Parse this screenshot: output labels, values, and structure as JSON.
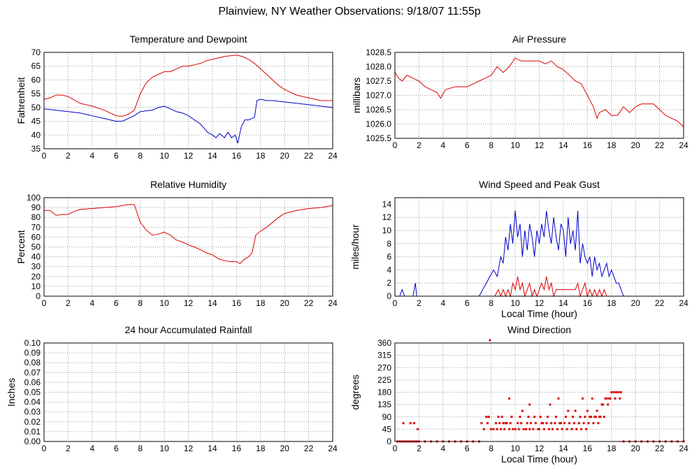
{
  "page": {
    "title": "Plainview, NY Weather Observations: 9/18/07 11:55p"
  },
  "colors": {
    "red": "#dd0000",
    "blue": "#0000cc",
    "grid": "#999999",
    "frame": "#000000"
  },
  "chart_data": [
    {
      "id": "temp",
      "type": "line",
      "title": "Temperature and Dewpoint",
      "xlabel": "",
      "ylabel": "Fahrenheit",
      "xlim": [
        0,
        24
      ],
      "ylim": [
        35,
        70
      ],
      "xticks": [
        0,
        2,
        4,
        6,
        8,
        10,
        12,
        14,
        16,
        18,
        20,
        22,
        24
      ],
      "yticks": [
        35,
        40,
        45,
        50,
        55,
        60,
        65,
        70
      ],
      "grid": true,
      "series": [
        {
          "color": "#dd0000",
          "x": [
            0,
            0.5,
            1,
            1.5,
            2,
            3,
            4,
            5,
            5.5,
            6,
            6.5,
            7,
            7.5,
            8,
            8.5,
            9,
            9.5,
            10,
            10.5,
            11,
            11.5,
            12,
            12.5,
            13,
            13.5,
            14,
            14.5,
            15,
            15.5,
            16,
            16.5,
            17,
            17.5,
            18,
            18.5,
            19,
            19.5,
            20,
            20.5,
            21,
            21.5,
            22,
            22.5,
            23,
            23.5,
            24
          ],
          "y": [
            53,
            53.5,
            54.5,
            54.5,
            54,
            51.5,
            50.5,
            49,
            48,
            47,
            46.8,
            47.5,
            49,
            55,
            59,
            61,
            62,
            63,
            63,
            64,
            65,
            65,
            65.5,
            66,
            67,
            67.5,
            68,
            68.5,
            68.8,
            69,
            68.5,
            67.5,
            66,
            64,
            62,
            60,
            58,
            56.5,
            55.5,
            54.5,
            54,
            53.5,
            53,
            52.5,
            52.5,
            52.5
          ]
        },
        {
          "color": "#0000cc",
          "x": [
            0,
            1,
            2,
            3,
            4,
            5,
            6,
            6.5,
            7,
            7.5,
            8,
            8.5,
            9,
            9.5,
            10,
            10.5,
            11,
            11.5,
            12,
            12.5,
            13,
            13.3,
            13.6,
            14,
            14.3,
            14.6,
            15,
            15.3,
            15.6,
            15.9,
            16.1,
            16.4,
            16.7,
            17,
            17.3,
            17.5,
            17.7,
            18,
            18.5,
            19,
            20,
            21,
            22,
            23,
            24
          ],
          "y": [
            49.5,
            49,
            48.5,
            48,
            47,
            46,
            45,
            45,
            46,
            47,
            48.5,
            48.8,
            49,
            50,
            50.5,
            49.5,
            48.5,
            48,
            47,
            45.5,
            44,
            42.5,
            41,
            40,
            39,
            40.5,
            39,
            41,
            39,
            40,
            37,
            43,
            45.5,
            45.5,
            46,
            46.5,
            52.5,
            53,
            52.5,
            52.5,
            52,
            51.5,
            51,
            50.5,
            50
          ]
        }
      ]
    },
    {
      "id": "pressure",
      "type": "line",
      "title": "Air Pressure",
      "xlabel": "",
      "ylabel": "millibars",
      "xlim": [
        0,
        24
      ],
      "ylim": [
        1025.5,
        1028.5
      ],
      "xticks": [
        0,
        2,
        4,
        6,
        8,
        10,
        12,
        14,
        16,
        18,
        20,
        22,
        24
      ],
      "yticks": [
        1025.5,
        1026.0,
        1026.5,
        1027.0,
        1027.5,
        1028.0,
        1028.5
      ],
      "ytick_labels": [
        "1025.5",
        "1026.0",
        "1026.5",
        "1027.0",
        "1027.5",
        "1028.0",
        "1028.5"
      ],
      "grid": true,
      "series": [
        {
          "color": "#dd0000",
          "x": [
            0,
            0.3,
            0.6,
            1.0,
            1.5,
            2.0,
            2.5,
            3.0,
            3.5,
            3.8,
            4.2,
            5.0,
            5.5,
            6.0,
            6.5,
            7.0,
            7.5,
            8.0,
            8.5,
            9.0,
            9.5,
            10.0,
            10.5,
            11.0,
            11.5,
            12.0,
            12.5,
            13.0,
            13.5,
            14.0,
            14.5,
            15.0,
            15.5,
            16.0,
            16.5,
            16.8,
            17.0,
            17.5,
            18.0,
            18.5,
            19.0,
            19.5,
            20.0,
            20.5,
            21.0,
            21.5,
            22.0,
            22.5,
            23.0,
            23.5,
            24.0
          ],
          "y": [
            1027.8,
            1027.6,
            1027.5,
            1027.7,
            1027.6,
            1027.5,
            1027.3,
            1027.2,
            1027.1,
            1026.9,
            1027.2,
            1027.3,
            1027.3,
            1027.3,
            1027.4,
            1027.5,
            1027.6,
            1027.7,
            1028.0,
            1027.8,
            1028.0,
            1028.3,
            1028.2,
            1028.2,
            1028.2,
            1028.2,
            1028.1,
            1028.2,
            1028.0,
            1027.9,
            1027.7,
            1027.5,
            1027.4,
            1027.0,
            1026.6,
            1026.2,
            1026.4,
            1026.5,
            1026.3,
            1026.3,
            1026.6,
            1026.4,
            1026.6,
            1026.7,
            1026.7,
            1026.7,
            1026.5,
            1026.3,
            1026.2,
            1026.1,
            1025.9
          ]
        }
      ]
    },
    {
      "id": "humidity",
      "type": "line",
      "title": "Relative Humidity",
      "xlabel": "",
      "ylabel": "Percent",
      "xlim": [
        0,
        24
      ],
      "ylim": [
        0,
        100
      ],
      "xticks": [
        0,
        2,
        4,
        6,
        8,
        10,
        12,
        14,
        16,
        18,
        20,
        22,
        24
      ],
      "yticks": [
        0,
        10,
        20,
        30,
        40,
        50,
        60,
        70,
        80,
        90,
        100
      ],
      "grid": true,
      "series": [
        {
          "color": "#dd0000",
          "x": [
            0,
            0.5,
            1,
            1.5,
            2,
            2.5,
            3,
            4,
            5,
            6,
            6.5,
            7,
            7.5,
            8,
            8.5,
            9,
            9.5,
            10,
            10.5,
            11,
            11.5,
            12,
            12.5,
            13,
            13.5,
            14,
            14.5,
            15,
            15.5,
            16,
            16.3,
            16.6,
            17,
            17.3,
            17.6,
            18,
            18.5,
            19,
            19.5,
            20,
            21,
            22,
            23,
            24
          ],
          "y": [
            87,
            87,
            82,
            83,
            83,
            86,
            88,
            89,
            90,
            91,
            92,
            93,
            93,
            75,
            67,
            62,
            63,
            65,
            62,
            57,
            55,
            52,
            50,
            47,
            44,
            42,
            38,
            36,
            35,
            35,
            33,
            37,
            40,
            44,
            62,
            66,
            70,
            75,
            80,
            84,
            87,
            89,
            90,
            92
          ]
        }
      ]
    },
    {
      "id": "wind",
      "type": "line",
      "title": "Wind Speed and Peak Gust",
      "xlabel": "Local Time (hour)",
      "ylabel": "miles/hour",
      "xlim": [
        0,
        24
      ],
      "ylim": [
        0,
        15
      ],
      "xticks": [
        0,
        2,
        4,
        6,
        8,
        10,
        12,
        14,
        16,
        18,
        20,
        22,
        24
      ],
      "yticks": [
        0,
        2,
        4,
        6,
        8,
        10,
        12,
        14
      ],
      "grid": true,
      "series": [
        {
          "color": "#0000cc",
          "x": [
            0,
            0.4,
            0.6,
            0.8,
            1.0,
            1.5,
            1.7,
            1.8,
            2.0,
            7.0,
            7.3,
            7.6,
            7.9,
            8.2,
            8.5,
            8.8,
            9.0,
            9.2,
            9.4,
            9.6,
            9.8,
            10.0,
            10.2,
            10.4,
            10.6,
            10.8,
            11.0,
            11.2,
            11.4,
            11.6,
            11.8,
            12.0,
            12.2,
            12.4,
            12.6,
            12.8,
            13.0,
            13.2,
            13.4,
            13.6,
            13.8,
            14.0,
            14.2,
            14.4,
            14.6,
            14.8,
            15.0,
            15.2,
            15.4,
            15.6,
            15.8,
            16.0,
            16.2,
            16.4,
            16.6,
            16.8,
            17.0,
            17.2,
            17.4,
            17.6,
            17.8,
            18.0,
            18.2,
            18.4,
            18.6,
            18.8,
            19.0,
            24.0
          ],
          "y": [
            0,
            0,
            1,
            0,
            0,
            0,
            2,
            0,
            0,
            0,
            1,
            2,
            3,
            4,
            3,
            6,
            5,
            9,
            7,
            11,
            8,
            13,
            9,
            11,
            6,
            10,
            7,
            11,
            9,
            6,
            10,
            8,
            11,
            9,
            13,
            10,
            8,
            12,
            9,
            7,
            11,
            10,
            6,
            12,
            8,
            10,
            7,
            13,
            5,
            8,
            6,
            5,
            6,
            3,
            6,
            4,
            5,
            3,
            4,
            5,
            3,
            4,
            3,
            2,
            2,
            1,
            0,
            0
          ]
        },
        {
          "color": "#dd0000",
          "x": [
            0,
            8.3,
            8.6,
            8.8,
            9.0,
            9.2,
            9.4,
            9.6,
            9.8,
            10.0,
            10.2,
            10.4,
            10.6,
            10.8,
            11.0,
            11.2,
            11.4,
            11.6,
            11.8,
            12.0,
            12.2,
            12.4,
            12.6,
            12.8,
            13.0,
            13.2,
            13.4,
            13.6,
            13.8,
            14.0,
            14.2,
            14.4,
            14.6,
            14.8,
            15.0,
            15.2,
            15.4,
            15.6,
            15.8,
            16.0,
            16.2,
            16.4,
            16.6,
            16.8,
            17.0,
            17.2,
            17.4,
            17.6,
            24.0
          ],
          "y": [
            0,
            0,
            1,
            0,
            1,
            0,
            1,
            0,
            2,
            1,
            3,
            1,
            2,
            0,
            1,
            2,
            0,
            1,
            0,
            1,
            2,
            1,
            3,
            1,
            2,
            0,
            1,
            1,
            1,
            1,
            1,
            1,
            1,
            1,
            1,
            2,
            0,
            1,
            2,
            0,
            1,
            0,
            1,
            0,
            1,
            0,
            1,
            0,
            0
          ]
        }
      ]
    },
    {
      "id": "rain",
      "type": "line",
      "title": "24 hour Accumulated Rainfall",
      "xlabel": "",
      "ylabel": "Inches",
      "xlim": [
        0,
        24
      ],
      "ylim": [
        0,
        0.1
      ],
      "xticks": [
        0,
        2,
        4,
        6,
        8,
        10,
        12,
        14,
        16,
        18,
        20,
        22,
        24
      ],
      "yticks": [
        0,
        0.01,
        0.02,
        0.03,
        0.04,
        0.05,
        0.06,
        0.07,
        0.08,
        0.09,
        0.1
      ],
      "ytick_labels": [
        "0.00",
        "0.01",
        "0.02",
        "0.03",
        "0.04",
        "0.05",
        "0.06",
        "0.07",
        "0.08",
        "0.09",
        "0.10"
      ],
      "grid": true,
      "series": [
        {
          "color": "#dd0000",
          "x": [
            0,
            24
          ],
          "y": [
            0,
            0
          ]
        }
      ]
    },
    {
      "id": "direction",
      "type": "scatter",
      "title": "Wind Direction",
      "xlabel": "Local Time (hour)",
      "ylabel": "degrees",
      "xlim": [
        0,
        24
      ],
      "ylim": [
        0,
        360
      ],
      "xticks": [
        0,
        2,
        4,
        6,
        8,
        10,
        12,
        14,
        16,
        18,
        20,
        22,
        24
      ],
      "yticks": [
        0,
        45,
        90,
        135,
        180,
        225,
        270,
        315,
        360
      ],
      "grid": true,
      "series": [
        {
          "color": "#dd0000",
          "x": [
            0.2,
            0.4,
            0.6,
            0.8,
            1.0,
            1.2,
            1.4,
            1.6,
            1.8,
            2.0,
            2.5,
            3,
            3.5,
            4,
            4.5,
            5,
            5.5,
            6,
            6.5,
            7.0,
            0.7,
            1.3,
            1.6,
            1.9,
            7.2,
            7.4,
            7.6,
            7.7,
            7.8,
            8.0,
            8.2,
            8.4,
            8.5,
            8.7,
            8.8,
            9.0,
            9.1,
            9.3,
            9.5,
            9.6,
            9.8,
            10.0,
            10.2,
            10.3,
            10.5,
            10.7,
            10.9,
            11.0,
            11.2,
            11.3,
            11.5,
            11.7,
            11.9,
            12.0,
            12.2,
            12.4,
            12.6,
            12.8,
            13.0,
            13.1,
            13.3,
            13.5,
            13.7,
            13.9,
            14.1,
            14.3,
            14.5,
            14.7,
            14.9,
            15.1,
            15.3,
            15.5,
            15.7,
            15.9,
            16.1,
            16.3,
            16.5,
            16.7,
            16.9,
            17.1,
            17.3,
            17.5,
            17.6,
            17.8,
            18.0,
            18.2,
            18.4,
            18.6,
            18.8,
            8.6,
            8.9,
            9.2,
            9.7,
            10.4,
            11.1,
            11.6,
            12.1,
            12.7,
            13.4,
            14.2,
            14.8,
            15.4,
            15.8,
            16.2,
            16.6,
            17.0,
            17.4,
            7.9,
            11.2,
            13.6,
            15.0,
            16.4,
            16.8,
            17.2,
            17.7,
            9.5,
            10.6,
            12.9,
            14.4,
            15.6,
            16.0,
            12.3,
            13.8,
            17.9,
            18.3,
            18.7,
            19.0,
            19.5,
            20.0,
            20.5,
            21.0,
            21.5,
            22.0,
            22.5,
            23.0,
            23.5,
            24.0
          ],
          "y": [
            0,
            0,
            0,
            0,
            0,
            0,
            0,
            0,
            0,
            0,
            0,
            0,
            0,
            0,
            0,
            0,
            0,
            0,
            0,
            0,
            67,
            67,
            67,
            45,
            67,
            45,
            90,
            67,
            90,
            45,
            45,
            67,
            45,
            67,
            45,
            67,
            45,
            67,
            45,
            67,
            45,
            45,
            67,
            45,
            67,
            45,
            45,
            67,
            45,
            67,
            45,
            67,
            45,
            45,
            67,
            45,
            67,
            45,
            67,
            45,
            67,
            45,
            67,
            45,
            67,
            45,
            67,
            45,
            67,
            45,
            67,
            45,
            67,
            45,
            67,
            90,
            67,
            90,
            67,
            90,
            135,
            157,
            157,
            157,
            180,
            180,
            180,
            180,
            180,
            90,
            90,
            67,
            90,
            90,
            90,
            90,
            90,
            90,
            90,
            90,
            90,
            90,
            90,
            90,
            90,
            90,
            90,
            370,
            135,
            157,
            112,
            157,
            112,
            135,
            135,
            157,
            112,
            135,
            112,
            157,
            112,
            67,
            67,
            157,
            157,
            157,
            0,
            0,
            0,
            0,
            0,
            0,
            0,
            0,
            0,
            0,
            0
          ]
        }
      ]
    }
  ]
}
